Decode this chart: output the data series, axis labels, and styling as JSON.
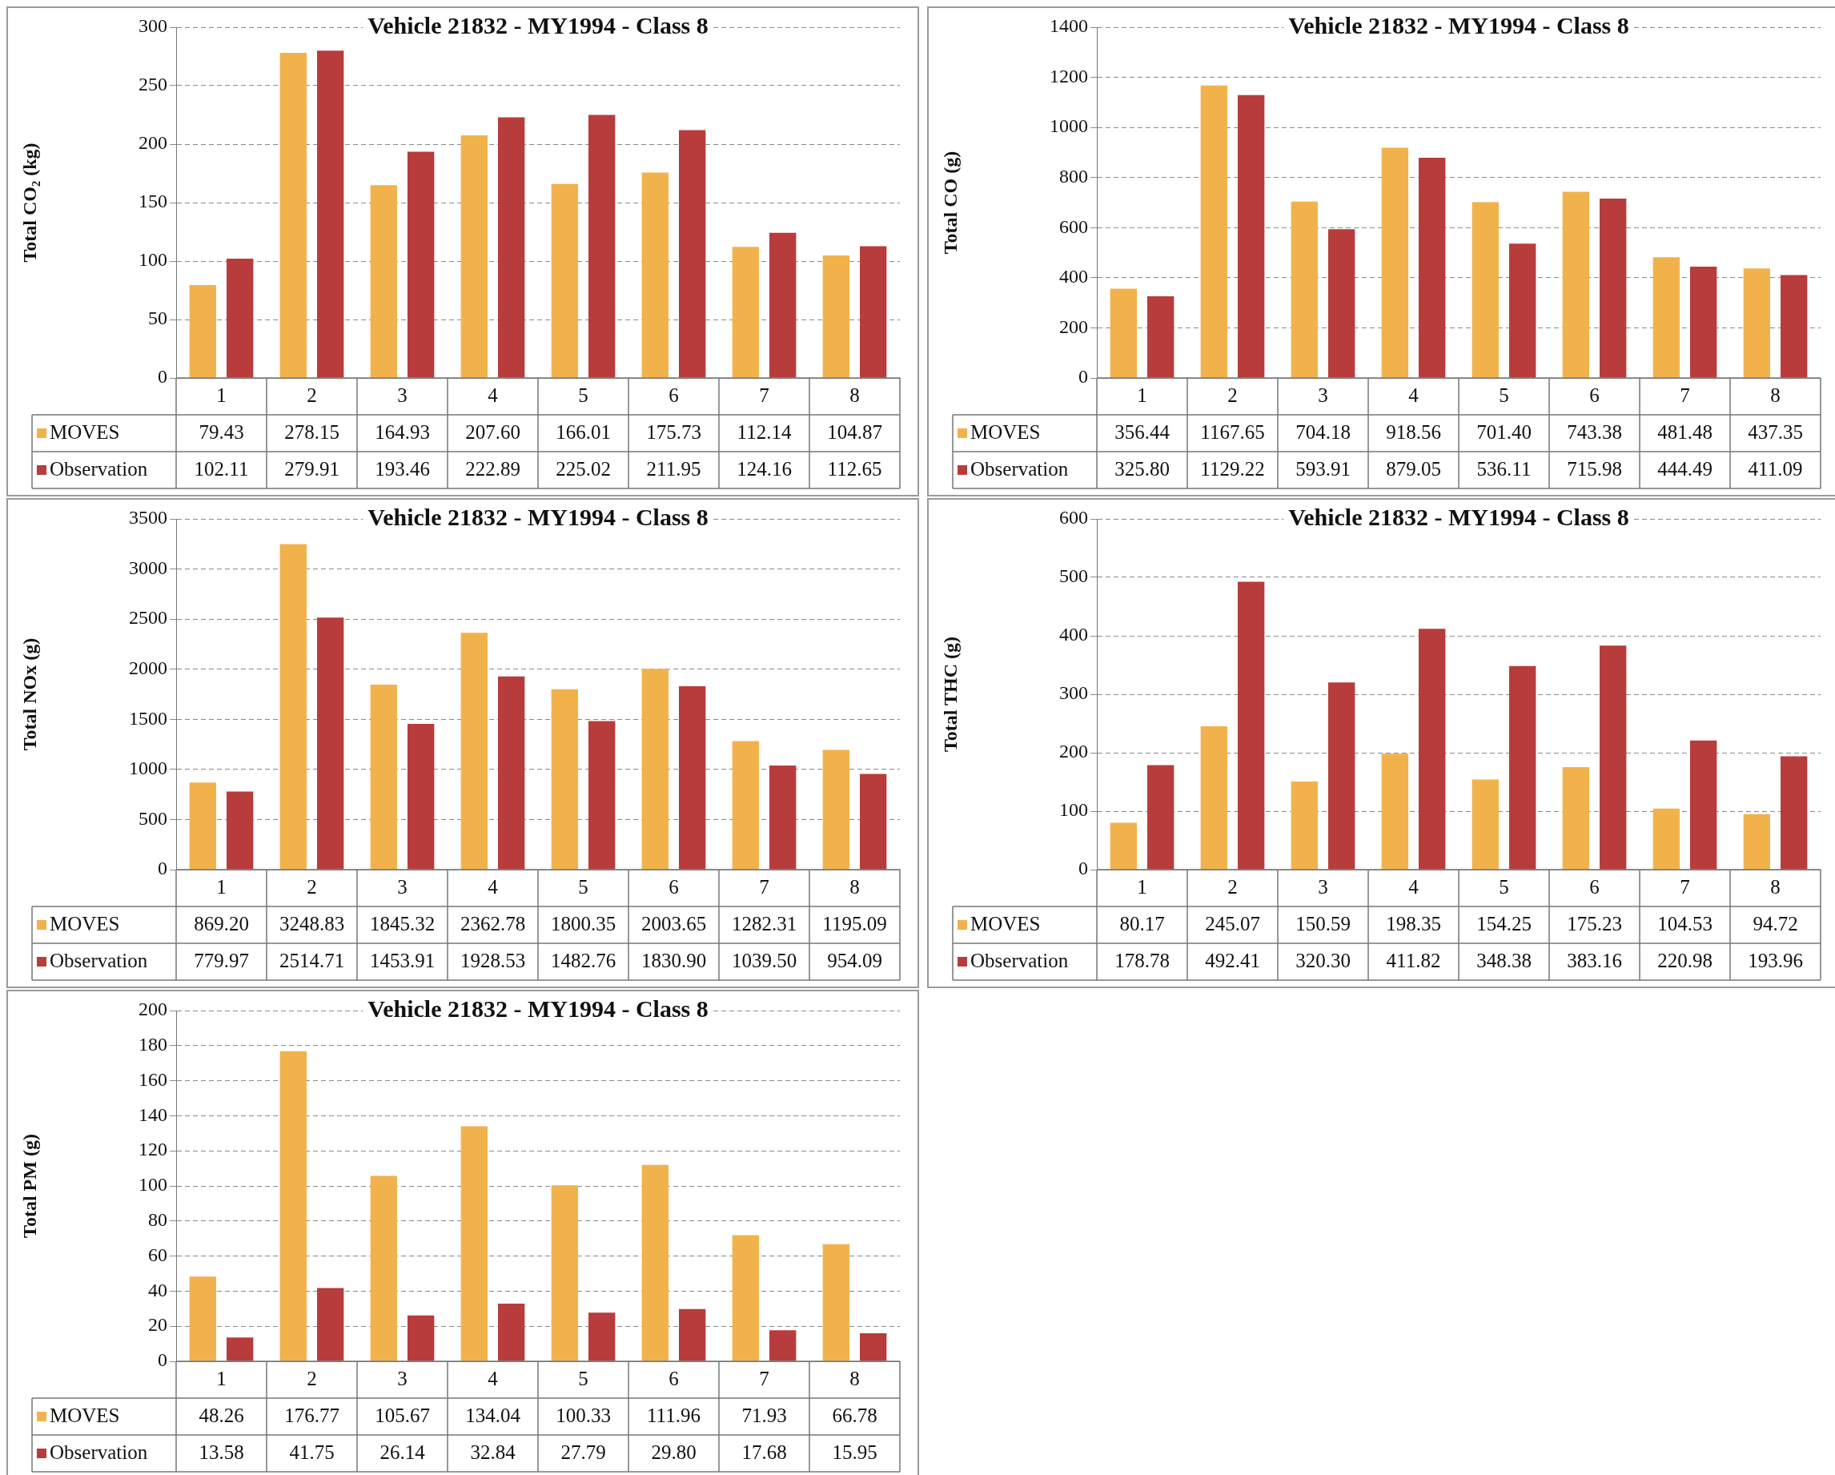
{
  "chart_data": [
    {
      "type": "bar",
      "title": "Vehicle 21832 - MY1994 - Class 8",
      "ylabel": "Total CO₂ (kg)",
      "categories": [
        "1",
        "2",
        "3",
        "4",
        "5",
        "6",
        "7",
        "8"
      ],
      "series": [
        {
          "name": "MOVES",
          "color": "#f2b24b",
          "values": [
            79.43,
            278.15,
            164.93,
            207.6,
            166.01,
            175.73,
            112.14,
            104.87
          ],
          "value_labels": [
            "79.43",
            "278.15",
            "164.93",
            "207.60",
            "166.01",
            "175.73",
            "112.14",
            "104.87"
          ]
        },
        {
          "name": "Observation",
          "color": "#b73c3b",
          "values": [
            102.11,
            279.91,
            193.46,
            222.89,
            225.02,
            211.95,
            124.16,
            112.65
          ],
          "value_labels": [
            "102.11",
            "279.91",
            "193.46",
            "222.89",
            "225.02",
            "211.95",
            "124.16",
            "112.65"
          ]
        }
      ],
      "ylim": [
        0,
        300
      ],
      "yticks": [
        0,
        50,
        100,
        150,
        200,
        250,
        300
      ],
      "grid": "y",
      "legend": "bottom"
    },
    {
      "type": "bar",
      "title": "Vehicle 21832 - MY1994 - Class 8",
      "ylabel": "Total CO (g)",
      "categories": [
        "1",
        "2",
        "3",
        "4",
        "5",
        "6",
        "7",
        "8"
      ],
      "series": [
        {
          "name": "MOVES",
          "color": "#f2b24b",
          "values": [
            356.44,
            1167.65,
            704.18,
            918.56,
            701.4,
            743.38,
            481.48,
            437.35
          ],
          "value_labels": [
            "356.44",
            "1167.65",
            "704.18",
            "918.56",
            "701.40",
            "743.38",
            "481.48",
            "437.35"
          ]
        },
        {
          "name": "Observation",
          "color": "#b73c3b",
          "values": [
            325.8,
            1129.22,
            593.91,
            879.05,
            536.11,
            715.98,
            444.49,
            411.09
          ],
          "value_labels": [
            "325.80",
            "1129.22",
            "593.91",
            "879.05",
            "536.11",
            "715.98",
            "444.49",
            "411.09"
          ]
        }
      ],
      "ylim": [
        0,
        1400
      ],
      "yticks": [
        0,
        200,
        400,
        600,
        800,
        1000,
        1200,
        1400
      ],
      "grid": "y",
      "legend": "bottom"
    },
    {
      "type": "bar",
      "title": "Vehicle 21832 - MY1994 - Class 8",
      "ylabel": "Total NOx (g)",
      "categories": [
        "1",
        "2",
        "3",
        "4",
        "5",
        "6",
        "7",
        "8"
      ],
      "series": [
        {
          "name": "MOVES",
          "color": "#f2b24b",
          "values": [
            869.2,
            3248.83,
            1845.32,
            2362.78,
            1800.35,
            2003.65,
            1282.31,
            1195.09
          ],
          "value_labels": [
            "869.20",
            "3248.83",
            "1845.32",
            "2362.78",
            "1800.35",
            "2003.65",
            "1282.31",
            "1195.09"
          ]
        },
        {
          "name": "Observation",
          "color": "#b73c3b",
          "values": [
            779.97,
            2514.71,
            1453.91,
            1928.53,
            1482.76,
            1830.9,
            1039.5,
            954.09
          ],
          "value_labels": [
            "779.97",
            "2514.71",
            "1453.91",
            "1928.53",
            "1482.76",
            "1830.90",
            "1039.50",
            "954.09"
          ]
        }
      ],
      "ylim": [
        0,
        3500
      ],
      "yticks": [
        0,
        500,
        1000,
        1500,
        2000,
        2500,
        3000,
        3500
      ],
      "grid": "y",
      "legend": "bottom"
    },
    {
      "type": "bar",
      "title": "Vehicle 21832 - MY1994 - Class 8",
      "ylabel": "Total THC (g)",
      "categories": [
        "1",
        "2",
        "3",
        "4",
        "5",
        "6",
        "7",
        "8"
      ],
      "series": [
        {
          "name": "MOVES",
          "color": "#f2b24b",
          "values": [
            80.17,
            245.07,
            150.59,
            198.35,
            154.25,
            175.23,
            104.53,
            94.72
          ],
          "value_labels": [
            "80.17",
            "245.07",
            "150.59",
            "198.35",
            "154.25",
            "175.23",
            "104.53",
            "94.72"
          ]
        },
        {
          "name": "Observation",
          "color": "#b73c3b",
          "values": [
            178.78,
            492.41,
            320.3,
            411.82,
            348.38,
            383.16,
            220.98,
            193.96
          ],
          "value_labels": [
            "178.78",
            "492.41",
            "320.30",
            "411.82",
            "348.38",
            "383.16",
            "220.98",
            "193.96"
          ]
        }
      ],
      "ylim": [
        0,
        600
      ],
      "yticks": [
        0,
        100,
        200,
        300,
        400,
        500,
        600
      ],
      "grid": "y",
      "legend": "bottom"
    },
    {
      "type": "bar",
      "title": "Vehicle 21832 - MY1994 - Class 8",
      "ylabel": "Total PM (g)",
      "categories": [
        "1",
        "2",
        "3",
        "4",
        "5",
        "6",
        "7",
        "8"
      ],
      "series": [
        {
          "name": "MOVES",
          "color": "#f2b24b",
          "values": [
            48.26,
            176.77,
            105.67,
            134.04,
            100.33,
            111.96,
            71.93,
            66.78
          ],
          "value_labels": [
            "48.26",
            "176.77",
            "105.67",
            "134.04",
            "100.33",
            "111.96",
            "71.93",
            "66.78"
          ]
        },
        {
          "name": "Observation",
          "color": "#b73c3b",
          "values": [
            13.58,
            41.75,
            26.14,
            32.84,
            27.79,
            29.8,
            17.68,
            15.95
          ],
          "value_labels": [
            "13.58",
            "41.75",
            "26.14",
            "32.84",
            "27.79",
            "29.80",
            "17.68",
            "15.95"
          ]
        }
      ],
      "ylim": [
        0,
        200
      ],
      "yticks": [
        0,
        20,
        40,
        60,
        80,
        100,
        120,
        140,
        160,
        180,
        200
      ],
      "grid": "y",
      "legend": "bottom"
    }
  ]
}
